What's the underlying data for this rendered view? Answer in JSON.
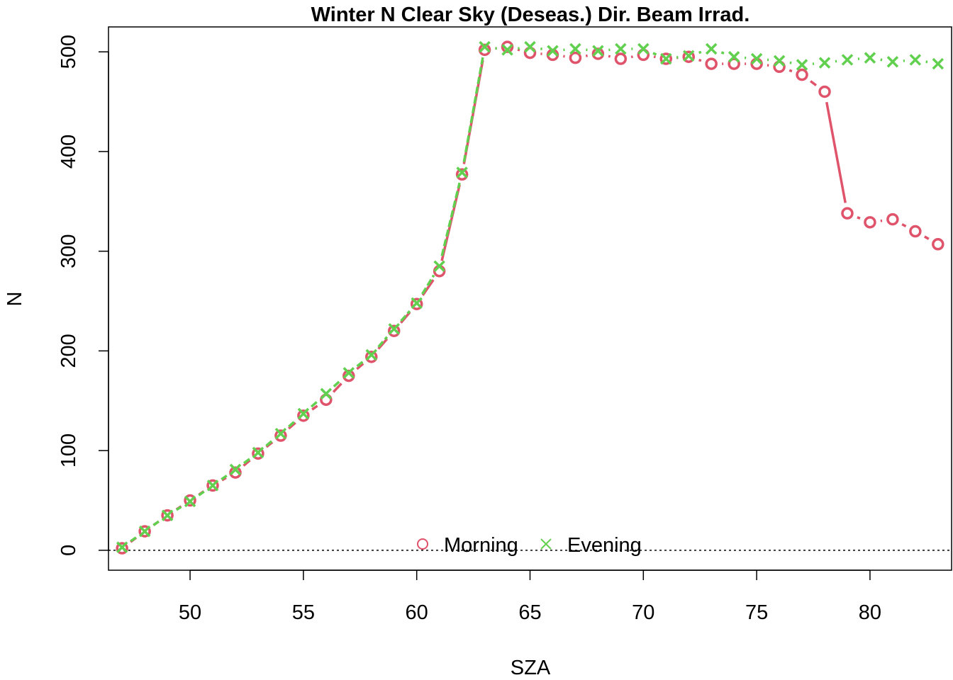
{
  "chart_data": {
    "type": "scatter",
    "title": "Winter N Clear Sky (Deseas.) Dir. Beam Irrad.",
    "xlabel": "SZA",
    "ylabel": "N",
    "xlim": [
      46.4,
      83.6
    ],
    "ylim": [
      -20,
      525
    ],
    "xticks": [
      50,
      55,
      60,
      65,
      70,
      75,
      80
    ],
    "yticks": [
      0,
      100,
      200,
      300,
      400,
      500
    ],
    "reference_line": {
      "y": 0,
      "style": "dotted",
      "color": "#000000"
    },
    "legend": {
      "placement": "bottom-center",
      "entries": [
        "Morning",
        "Evening"
      ]
    },
    "x": [
      47,
      48,
      49,
      50,
      51,
      52,
      53,
      54,
      55,
      56,
      57,
      58,
      59,
      60,
      61,
      62,
      63,
      64,
      65,
      66,
      67,
      68,
      69,
      70,
      71,
      72,
      73,
      74,
      75,
      76,
      77,
      78,
      79,
      80,
      81,
      82,
      83
    ],
    "series": [
      {
        "name": "Morning",
        "marker": "circle",
        "color": "#DF536B",
        "values": [
          2,
          19,
          35,
          50,
          65,
          78,
          97,
          115,
          135,
          151,
          175,
          194,
          220,
          247,
          280,
          377,
          502,
          505,
          499,
          497,
          494,
          498,
          493,
          497,
          493,
          495,
          488,
          488,
          488,
          485,
          477,
          460,
          338,
          329,
          332,
          320,
          307
        ]
      },
      {
        "name": "Evening",
        "marker": "cross",
        "color": "#61D04F",
        "values": [
          3,
          19,
          35,
          49,
          65,
          81,
          98,
          117,
          137,
          157,
          178,
          196,
          222,
          248,
          285,
          379,
          505,
          502,
          505,
          501,
          503,
          501,
          503,
          503,
          493,
          496,
          503,
          495,
          493,
          491,
          487,
          489,
          492,
          494,
          490,
          492,
          488
        ]
      }
    ]
  }
}
